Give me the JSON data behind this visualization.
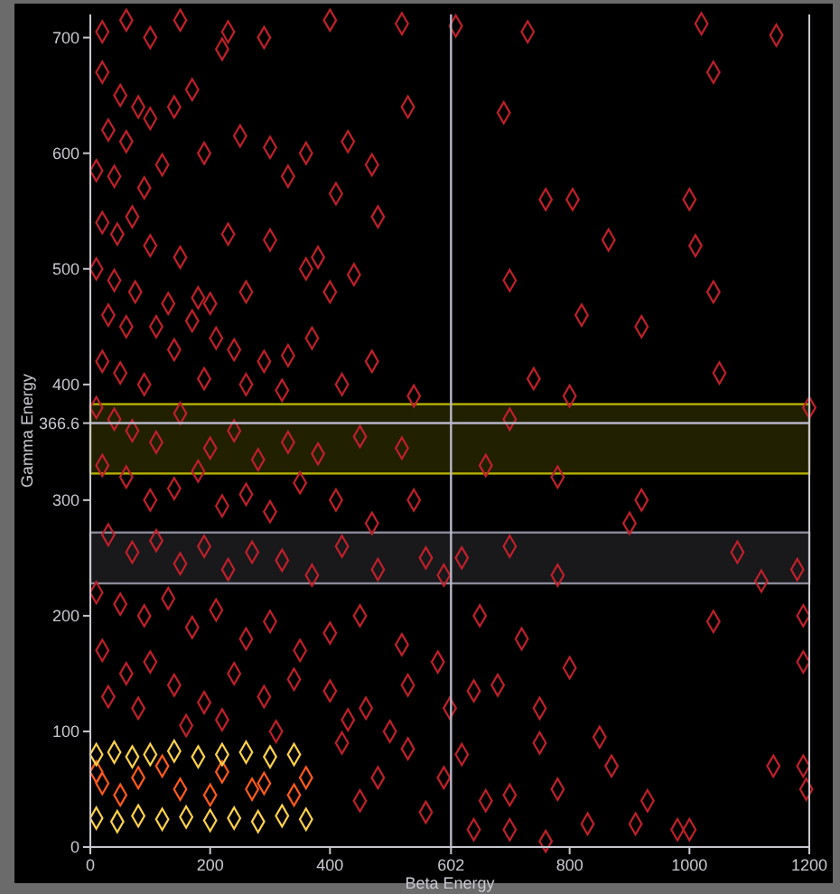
{
  "chart_data": {
    "type": "scatter",
    "xlabel": "Beta Energy",
    "ylabel": "Gamma Energy",
    "xlim": [
      0,
      1200
    ],
    "ylim": [
      0,
      720
    ],
    "xticks": [
      0,
      200,
      400,
      602,
      800,
      1000,
      1200
    ],
    "yticks": [
      0,
      100,
      200,
      300,
      366.6,
      400,
      500,
      600,
      700
    ],
    "marker": "diamond",
    "grid": false,
    "ref_lines": [
      {
        "axis": "x",
        "value": 602,
        "color": "#b8b8c8"
      },
      {
        "axis": "y",
        "value": 366.6,
        "color": "#b8b8c8"
      }
    ],
    "bands": [
      {
        "axis": "y",
        "from": 323,
        "to": 383,
        "color": "#b5b000"
      },
      {
        "axis": "y",
        "from": 228,
        "to": 272,
        "color": "#8a8a9a"
      }
    ],
    "series": [
      {
        "color": "#c0202a",
        "x": [
          20,
          60,
          100,
          150,
          230,
          290,
          400,
          520,
          20,
          50,
          80,
          170,
          220,
          30,
          60,
          100,
          140,
          190,
          250,
          300,
          360,
          430,
          470,
          530,
          10,
          40,
          90,
          120,
          330,
          410,
          480,
          20,
          45,
          70,
          100,
          150,
          230,
          300,
          380,
          440,
          10,
          40,
          75,
          130,
          180,
          200,
          260,
          360,
          400,
          30,
          60,
          110,
          170,
          210,
          240,
          290,
          330,
          370,
          470,
          20,
          50,
          90,
          140,
          190,
          260,
          320,
          420,
          540,
          610,
          730,
          1020,
          1145,
          690,
          1040,
          865,
          760,
          805,
          820,
          1010,
          1040,
          1050,
          700,
          920,
          740,
          1200,
          800,
          1000,
          10,
          40,
          70,
          110,
          150,
          200,
          240,
          280,
          330,
          380,
          450,
          520,
          20,
          60,
          100,
          140,
          180,
          220,
          260,
          300,
          350,
          410,
          470,
          540,
          30,
          70,
          110,
          150,
          190,
          230,
          270,
          320,
          370,
          420,
          480,
          560,
          590,
          620,
          700,
          780,
          900,
          1080,
          1120,
          660,
          780,
          700,
          920,
          10,
          50,
          90,
          130,
          170,
          210,
          260,
          300,
          350,
          400,
          450,
          520,
          580,
          650,
          720,
          800,
          1040,
          1180,
          1190,
          1190,
          20,
          60,
          100,
          140,
          190,
          240,
          290,
          340,
          400,
          460,
          530,
          600,
          640,
          680,
          750,
          30,
          80,
          160,
          220,
          310,
          430,
          420,
          480,
          530,
          560,
          620,
          660,
          700,
          750,
          780,
          850,
          870,
          930,
          1000,
          1140,
          1190,
          1195,
          640,
          700,
          760,
          830,
          910,
          980,
          450,
          500,
          590
        ],
        "values": [
          705,
          715,
          700,
          715,
          705,
          700,
          715,
          712,
          670,
          650,
          640,
          655,
          690,
          620,
          610,
          630,
          640,
          600,
          615,
          605,
          600,
          610,
          590,
          640,
          585,
          580,
          570,
          590,
          580,
          565,
          545,
          540,
          530,
          545,
          520,
          510,
          530,
          525,
          510,
          495,
          500,
          490,
          480,
          470,
          475,
          470,
          480,
          500,
          480,
          460,
          450,
          450,
          455,
          440,
          430,
          420,
          425,
          440,
          420,
          420,
          410,
          400,
          430,
          405,
          400,
          395,
          400,
          390,
          710,
          705,
          712,
          702,
          635,
          670,
          525,
          560,
          560,
          460,
          520,
          480,
          410,
          490,
          450,
          405,
          380,
          390,
          560,
          380,
          370,
          360,
          350,
          375,
          345,
          360,
          335,
          350,
          340,
          355,
          345,
          330,
          320,
          300,
          310,
          325,
          295,
          305,
          290,
          315,
          300,
          280,
          300,
          270,
          255,
          265,
          245,
          260,
          240,
          255,
          248,
          235,
          260,
          240,
          250,
          235,
          250,
          260,
          235,
          280,
          255,
          230,
          330,
          320,
          370,
          300,
          220,
          210,
          200,
          215,
          190,
          205,
          180,
          195,
          170,
          185,
          200,
          175,
          160,
          200,
          180,
          155,
          195,
          240,
          160,
          200,
          170,
          150,
          160,
          140,
          125,
          150,
          130,
          145,
          135,
          120,
          140,
          120,
          135,
          140,
          120,
          130,
          120,
          105,
          110,
          100,
          110,
          90,
          60,
          85,
          30,
          80,
          40,
          45,
          90,
          50,
          95,
          70,
          40,
          15,
          70,
          70,
          50,
          15,
          15,
          5,
          20,
          20,
          15,
          40,
          100,
          60
        ]
      },
      {
        "color": "#ff5a1a",
        "x": [
          20,
          80,
          150,
          220,
          290,
          360,
          50,
          120,
          200,
          270,
          340,
          10
        ],
        "values": [
          55,
          60,
          50,
          65,
          55,
          60,
          45,
          70,
          45,
          50,
          45,
          65
        ]
      },
      {
        "color": "#ffd24a",
        "x": [
          10,
          40,
          70,
          100,
          140,
          180,
          220,
          260,
          300,
          340,
          10,
          45,
          80,
          120,
          160,
          200,
          240,
          280,
          320,
          360
        ],
        "values": [
          80,
          82,
          78,
          80,
          83,
          78,
          80,
          82,
          78,
          80,
          25,
          22,
          27,
          24,
          26,
          23,
          25,
          22,
          27,
          24
        ]
      }
    ]
  }
}
